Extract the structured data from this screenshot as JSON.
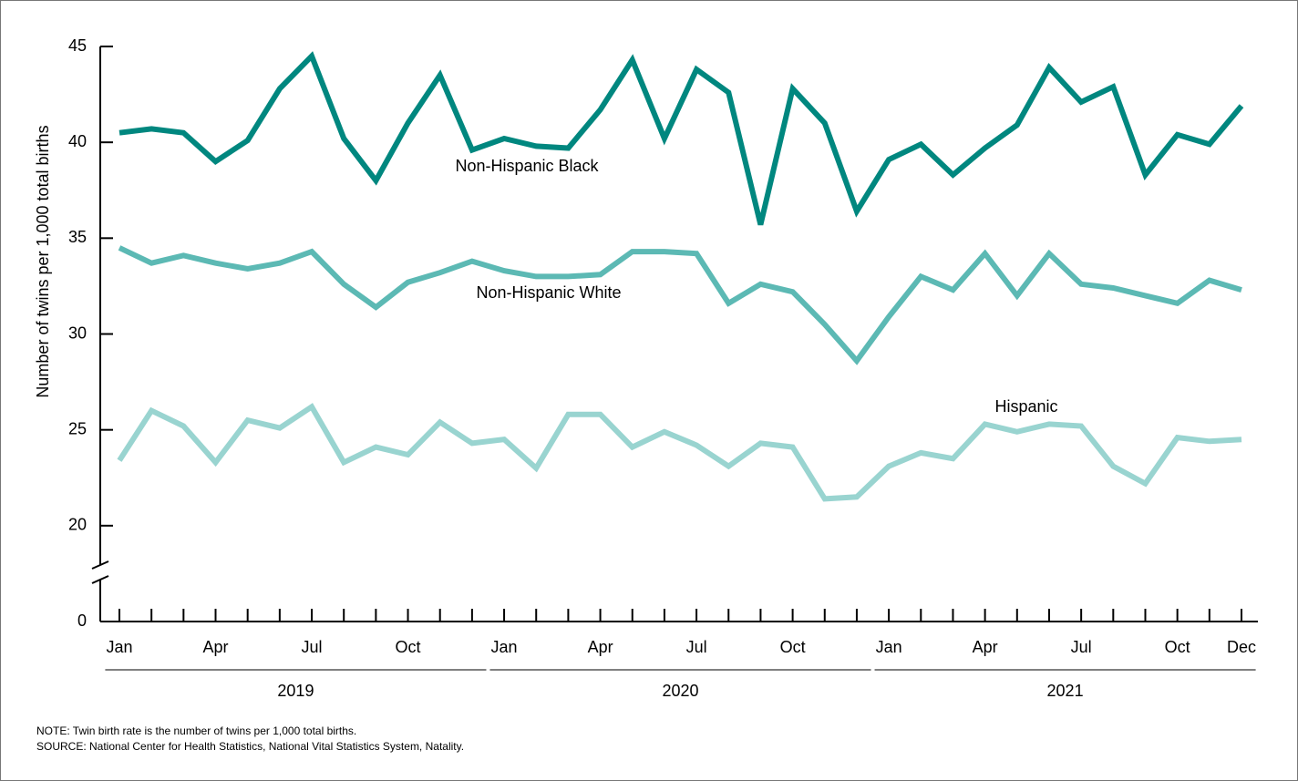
{
  "chart_data": {
    "type": "line",
    "ylabel": "Number of twins per 1,000 total births",
    "categories": [
      "Jan",
      null,
      null,
      "Apr",
      null,
      null,
      "Jul",
      null,
      null,
      "Oct",
      null,
      null,
      "Jan",
      null,
      null,
      "Apr",
      null,
      null,
      "Jul",
      null,
      null,
      "Oct",
      null,
      null,
      "Jan",
      null,
      null,
      "Apr",
      null,
      null,
      "Jul",
      null,
      null,
      "Oct",
      null,
      "Dec"
    ],
    "groups": [
      "2019",
      "2020",
      "2021"
    ],
    "ylim": [
      0,
      45
    ],
    "axis_break": [
      0,
      15
    ],
    "yticks": [
      0,
      20,
      25,
      30,
      35,
      40,
      45
    ],
    "series": [
      {
        "name": "Non-Hispanic Black",
        "color": "#00877f",
        "values": [
          40.5,
          40.7,
          40.5,
          39.0,
          40.1,
          42.8,
          44.5,
          40.2,
          38.0,
          41.0,
          43.5,
          39.6,
          40.2,
          39.8,
          39.7,
          41.7,
          44.3,
          40.2,
          43.8,
          42.6,
          35.7,
          42.8,
          41.0,
          36.4,
          39.1,
          39.9,
          38.3,
          39.7,
          40.9,
          43.9,
          42.1,
          42.9,
          38.3,
          40.4,
          39.9,
          41.9
        ]
      },
      {
        "name": "Non-Hispanic White",
        "color": "#5cb9b4",
        "values": [
          34.5,
          33.7,
          34.1,
          33.7,
          33.4,
          33.7,
          34.3,
          32.6,
          31.4,
          32.7,
          33.2,
          33.8,
          33.3,
          33.0,
          33.0,
          33.1,
          34.3,
          34.3,
          34.2,
          31.6,
          32.6,
          32.2,
          30.5,
          28.6,
          30.9,
          33.0,
          32.3,
          34.2,
          32.0,
          34.2,
          32.6,
          32.4,
          32.0,
          31.6,
          32.8,
          32.3
        ]
      },
      {
        "name": "Hispanic",
        "color": "#99d4d0",
        "values": [
          23.4,
          26.0,
          25.2,
          23.3,
          25.5,
          25.1,
          26.2,
          23.3,
          24.1,
          23.7,
          25.4,
          24.3,
          24.5,
          23.0,
          25.8,
          25.8,
          24.1,
          24.9,
          24.2,
          23.1,
          24.3,
          24.1,
          21.4,
          21.5,
          23.1,
          23.8,
          23.5,
          25.3,
          24.9,
          25.3,
          25.2,
          23.1,
          22.2,
          24.6,
          24.4,
          24.5
        ]
      }
    ],
    "notes": [
      "NOTE: Twin birth rate is the number of twins per 1,000 total births.",
      "SOURCE: National Center for Health Statistics, National Vital Statistics System, Natality."
    ]
  }
}
